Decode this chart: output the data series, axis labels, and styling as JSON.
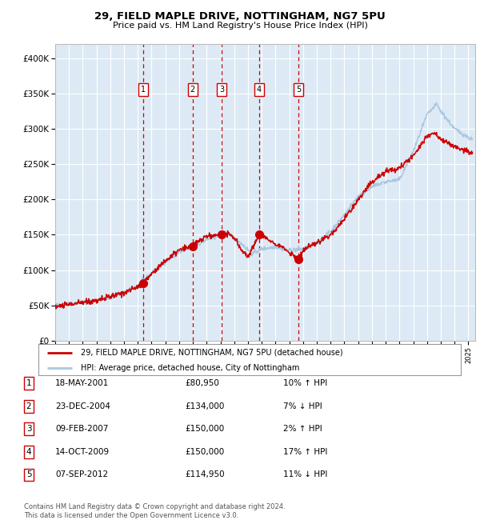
{
  "title1": "29, FIELD MAPLE DRIVE, NOTTINGHAM, NG7 5PU",
  "title2": "Price paid vs. HM Land Registry's House Price Index (HPI)",
  "legend_line1": "29, FIELD MAPLE DRIVE, NOTTINGHAM, NG7 5PU (detached house)",
  "legend_line2": "HPI: Average price, detached house, City of Nottingham",
  "footer1": "Contains HM Land Registry data © Crown copyright and database right 2024.",
  "footer2": "This data is licensed under the Open Government Licence v3.0.",
  "transactions": [
    {
      "num": 1,
      "date_yr": 2001.38,
      "price": 80950
    },
    {
      "num": 2,
      "date_yr": 2004.98,
      "price": 134000
    },
    {
      "num": 3,
      "date_yr": 2007.11,
      "price": 150000
    },
    {
      "num": 4,
      "date_yr": 2009.79,
      "price": 150000
    },
    {
      "num": 5,
      "date_yr": 2012.68,
      "price": 114950
    }
  ],
  "table_rows": [
    {
      "num": 1,
      "date_str": "18-MAY-2001",
      "price_str": "£80,950",
      "pct_str": "10% ↑ HPI"
    },
    {
      "num": 2,
      "date_str": "23-DEC-2004",
      "price_str": "£134,000",
      "pct_str": "7% ↓ HPI"
    },
    {
      "num": 3,
      "date_str": "09-FEB-2007",
      "price_str": "£150,000",
      "pct_str": "2% ↑ HPI"
    },
    {
      "num": 4,
      "date_str": "14-OCT-2009",
      "price_str": "£150,000",
      "pct_str": "17% ↑ HPI"
    },
    {
      "num": 5,
      "date_str": "07-SEP-2012",
      "price_str": "£114,950",
      "pct_str": "11% ↓ HPI"
    }
  ],
  "red_line_color": "#cc0000",
  "blue_line_color": "#aac8e0",
  "plot_bg": "#ddeaf5",
  "grid_color": "#ffffff",
  "dashed_color": "#cc0000",
  "ylim": [
    0,
    420000
  ],
  "yticks": [
    0,
    50000,
    100000,
    150000,
    200000,
    250000,
    300000,
    350000,
    400000
  ],
  "ylabel_fmt": [
    "£0",
    "£50K",
    "£100K",
    "£150K",
    "£200K",
    "£250K",
    "£300K",
    "£350K",
    "£400K"
  ],
  "xmin": 1995.0,
  "xmax": 2025.5
}
